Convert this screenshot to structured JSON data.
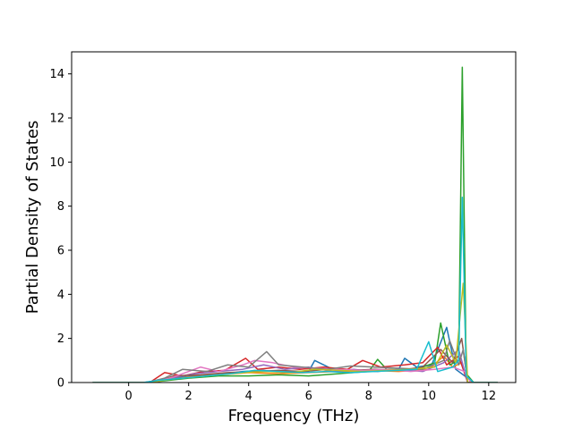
{
  "chart_data": {
    "type": "line",
    "title": "",
    "xlabel": "Frequency (THz)",
    "ylabel": "Partial Density of States",
    "xlim": [
      -1.9,
      12.9
    ],
    "ylim": [
      0,
      15
    ],
    "xticks": [
      0,
      2,
      4,
      6,
      8,
      10,
      12
    ],
    "yticks": [
      0,
      2,
      4,
      6,
      8,
      10,
      12,
      14
    ],
    "xtick_labels": [
      "0",
      "2",
      "4",
      "6",
      "8",
      "10",
      "12"
    ],
    "ytick_labels": [
      "0",
      "2",
      "4",
      "6",
      "8",
      "10",
      "12",
      "14"
    ],
    "grid": false,
    "legend": "none",
    "x_range_of_curves": [
      -1.2,
      12.3
    ],
    "series": [
      {
        "color": "#1f77b4",
        "values": [
          [
            -1.2,
            0
          ],
          [
            0.5,
            0
          ],
          [
            1.0,
            0.1
          ],
          [
            1.5,
            0.2
          ],
          [
            2.2,
            0.3
          ],
          [
            3.0,
            0.35
          ],
          [
            3.8,
            0.5
          ],
          [
            4.5,
            0.55
          ],
          [
            5.2,
            0.45
          ],
          [
            6.0,
            0.5
          ],
          [
            6.2,
            1.0
          ],
          [
            6.8,
            0.6
          ],
          [
            7.6,
            0.55
          ],
          [
            8.3,
            0.5
          ],
          [
            9.0,
            0.6
          ],
          [
            9.2,
            1.1
          ],
          [
            9.6,
            0.7
          ],
          [
            10.1,
            0.8
          ],
          [
            10.6,
            2.5
          ],
          [
            10.9,
            0.6
          ],
          [
            11.1,
            0.4
          ],
          [
            11.5,
            0
          ],
          [
            12.3,
            0
          ]
        ]
      },
      {
        "color": "#ff7f0e",
        "values": [
          [
            -1.2,
            0
          ],
          [
            0.6,
            0
          ],
          [
            1.2,
            0.1
          ],
          [
            2.0,
            0.25
          ],
          [
            3.0,
            0.35
          ],
          [
            4.0,
            0.45
          ],
          [
            5.0,
            0.4
          ],
          [
            6.0,
            0.45
          ],
          [
            7.0,
            0.5
          ],
          [
            8.0,
            0.55
          ],
          [
            9.0,
            0.5
          ],
          [
            10.0,
            0.6
          ],
          [
            10.5,
            1.2
          ],
          [
            10.8,
            0.7
          ],
          [
            11.1,
            0.9
          ],
          [
            11.3,
            0
          ],
          [
            12.3,
            0
          ]
        ]
      },
      {
        "color": "#2ca02c",
        "values": [
          [
            -1.2,
            0
          ],
          [
            0.5,
            0
          ],
          [
            1.0,
            0.05
          ],
          [
            2.0,
            0.2
          ],
          [
            3.0,
            0.3
          ],
          [
            4.0,
            0.3
          ],
          [
            5.0,
            0.35
          ],
          [
            6.0,
            0.3
          ],
          [
            7.0,
            0.4
          ],
          [
            8.0,
            0.5
          ],
          [
            8.3,
            1.05
          ],
          [
            8.6,
            0.6
          ],
          [
            9.5,
            0.55
          ],
          [
            10.2,
            0.9
          ],
          [
            10.4,
            2.7
          ],
          [
            10.7,
            0.8
          ],
          [
            11.0,
            1.0
          ],
          [
            11.12,
            14.3
          ],
          [
            11.25,
            0.4
          ],
          [
            11.5,
            0
          ],
          [
            12.3,
            0
          ]
        ]
      },
      {
        "color": "#d62728",
        "values": [
          [
            -1.2,
            0
          ],
          [
            0.7,
            0
          ],
          [
            1.2,
            0.45
          ],
          [
            1.8,
            0.3
          ],
          [
            2.5,
            0.5
          ],
          [
            3.2,
            0.55
          ],
          [
            3.9,
            1.1
          ],
          [
            4.3,
            0.6
          ],
          [
            5.0,
            0.7
          ],
          [
            5.7,
            0.6
          ],
          [
            6.5,
            0.7
          ],
          [
            7.3,
            0.6
          ],
          [
            7.8,
            1.0
          ],
          [
            8.4,
            0.7
          ],
          [
            9.2,
            0.8
          ],
          [
            9.8,
            0.9
          ],
          [
            10.3,
            1.6
          ],
          [
            10.6,
            0.8
          ],
          [
            11.0,
            1.2
          ],
          [
            11.3,
            0
          ],
          [
            12.3,
            0
          ]
        ]
      },
      {
        "color": "#9467bd",
        "values": [
          [
            -1.2,
            0
          ],
          [
            0.8,
            0
          ],
          [
            1.4,
            0.2
          ],
          [
            2.2,
            0.4
          ],
          [
            3.0,
            0.5
          ],
          [
            3.8,
            0.6
          ],
          [
            4.5,
            0.8
          ],
          [
            5.2,
            0.6
          ],
          [
            6.0,
            0.7
          ],
          [
            6.8,
            0.5
          ],
          [
            7.5,
            0.6
          ],
          [
            8.2,
            0.5
          ],
          [
            9.0,
            0.6
          ],
          [
            9.8,
            0.5
          ],
          [
            10.5,
            0.9
          ],
          [
            11.0,
            1.5
          ],
          [
            11.3,
            0
          ],
          [
            12.3,
            0
          ]
        ]
      },
      {
        "color": "#8c564b",
        "values": [
          [
            -1.2,
            0
          ],
          [
            0.9,
            0
          ],
          [
            1.5,
            0.3
          ],
          [
            2.4,
            0.35
          ],
          [
            3.3,
            0.45
          ],
          [
            4.2,
            0.5
          ],
          [
            5.0,
            0.55
          ],
          [
            5.8,
            0.5
          ],
          [
            6.6,
            0.6
          ],
          [
            7.4,
            0.55
          ],
          [
            8.2,
            0.6
          ],
          [
            9.0,
            0.55
          ],
          [
            9.8,
            0.7
          ],
          [
            10.4,
            1.5
          ],
          [
            10.8,
            0.9
          ],
          [
            11.1,
            2.0
          ],
          [
            11.3,
            0
          ],
          [
            12.3,
            0
          ]
        ]
      },
      {
        "color": "#e377c2",
        "values": [
          [
            -1.2,
            0
          ],
          [
            0.8,
            0
          ],
          [
            1.5,
            0.25
          ],
          [
            2.4,
            0.7
          ],
          [
            3.0,
            0.5
          ],
          [
            3.8,
            0.8
          ],
          [
            4.2,
            1.0
          ],
          [
            4.8,
            0.9
          ],
          [
            5.5,
            0.7
          ],
          [
            6.3,
            0.65
          ],
          [
            7.0,
            0.6
          ],
          [
            7.8,
            0.55
          ],
          [
            8.6,
            0.6
          ],
          [
            9.4,
            0.5
          ],
          [
            10.2,
            0.6
          ],
          [
            10.8,
            0.7
          ],
          [
            11.2,
            0.5
          ],
          [
            11.4,
            0
          ],
          [
            12.3,
            0
          ]
        ]
      },
      {
        "color": "#7f7f7f",
        "values": [
          [
            -1.2,
            0
          ],
          [
            0.6,
            0
          ],
          [
            1.2,
            0.2
          ],
          [
            1.8,
            0.6
          ],
          [
            2.6,
            0.5
          ],
          [
            3.3,
            0.8
          ],
          [
            4.0,
            0.7
          ],
          [
            4.6,
            1.4
          ],
          [
            5.0,
            0.8
          ],
          [
            5.8,
            0.7
          ],
          [
            6.6,
            0.6
          ],
          [
            7.4,
            0.75
          ],
          [
            8.2,
            0.7
          ],
          [
            9.0,
            0.65
          ],
          [
            9.8,
            0.6
          ],
          [
            10.5,
            1.0
          ],
          [
            10.7,
            1.9
          ],
          [
            11.0,
            0.8
          ],
          [
            11.15,
            1.5
          ],
          [
            11.3,
            0
          ],
          [
            12.3,
            0
          ]
        ]
      },
      {
        "color": "#bcbd22",
        "values": [
          [
            -1.2,
            0
          ],
          [
            0.7,
            0
          ],
          [
            1.4,
            0.15
          ],
          [
            2.2,
            0.25
          ],
          [
            3.0,
            0.35
          ],
          [
            3.8,
            0.45
          ],
          [
            4.6,
            0.5
          ],
          [
            5.4,
            0.45
          ],
          [
            6.2,
            0.6
          ],
          [
            7.0,
            0.55
          ],
          [
            7.8,
            0.5
          ],
          [
            8.6,
            0.55
          ],
          [
            9.4,
            0.6
          ],
          [
            10.2,
            0.7
          ],
          [
            10.6,
            1.7
          ],
          [
            10.9,
            0.9
          ],
          [
            11.15,
            4.5
          ],
          [
            11.3,
            0
          ],
          [
            12.3,
            0
          ]
        ]
      },
      {
        "color": "#17becf",
        "values": [
          [
            -1.2,
            0
          ],
          [
            0.5,
            0
          ],
          [
            1.0,
            0.1
          ],
          [
            1.8,
            0.2
          ],
          [
            2.6,
            0.3
          ],
          [
            3.4,
            0.4
          ],
          [
            4.2,
            0.55
          ],
          [
            5.0,
            0.5
          ],
          [
            5.8,
            0.45
          ],
          [
            6.6,
            0.5
          ],
          [
            7.4,
            0.45
          ],
          [
            8.2,
            0.5
          ],
          [
            9.0,
            0.55
          ],
          [
            9.6,
            0.6
          ],
          [
            10.0,
            1.85
          ],
          [
            10.3,
            0.5
          ],
          [
            10.8,
            0.7
          ],
          [
            11.0,
            1.0
          ],
          [
            11.12,
            8.4
          ],
          [
            11.25,
            0.3
          ],
          [
            11.5,
            0
          ],
          [
            12.3,
            0
          ]
        ]
      }
    ]
  }
}
